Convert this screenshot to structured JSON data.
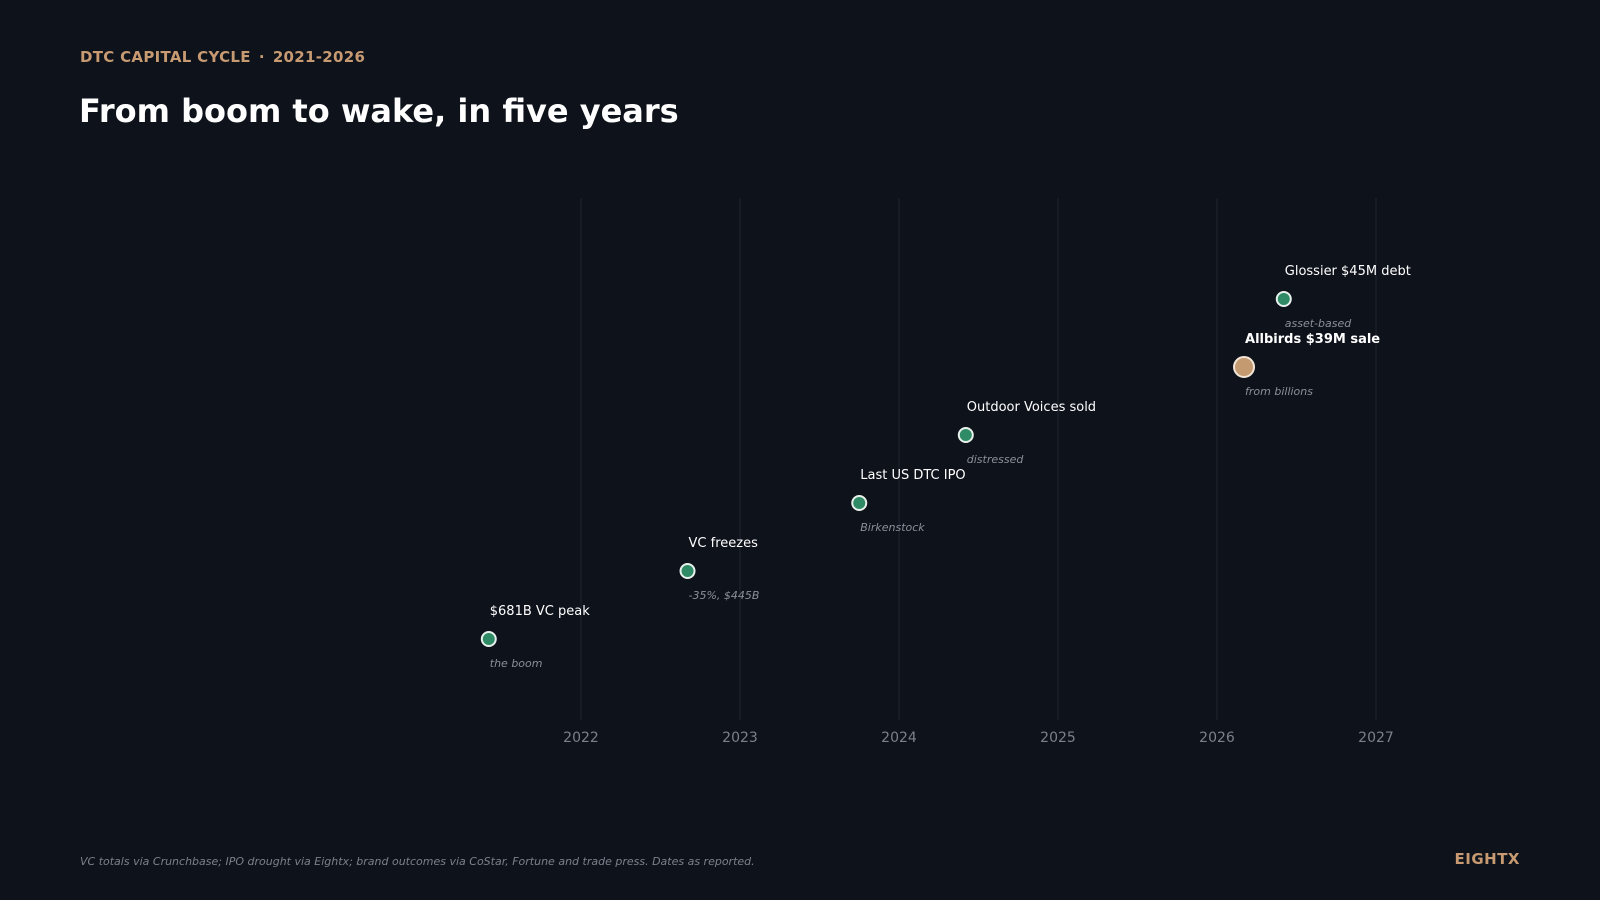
{
  "header": {
    "eyebrow_left": "DTC CAPITAL CYCLE",
    "eyebrow_sep": "·",
    "eyebrow_right": "2021-2026",
    "title": "From boom to wake, in five years"
  },
  "footer": {
    "source": "VC totals via Crunchbase; IPO drought via Eightx; brand outcomes via CoStar, Fortune and trade press. Dates as reported.",
    "brand": "EIGHTX"
  },
  "colors": {
    "background": "#0e121b",
    "accent": "#c79a72",
    "point": "#2f8a66",
    "highlight": "#c49a70",
    "text": "#ffffff",
    "muted": "#8a8f98",
    "grid": "#1e2430"
  },
  "chart_data": {
    "type": "scatter",
    "x_ticks": [
      2022,
      2023,
      2024,
      2025,
      2026,
      2027
    ],
    "xlim": [
      2021.4,
      2027.0
    ],
    "grid": true,
    "points": [
      {
        "x": 2021.42,
        "level": 1,
        "label": "$681B VC peak",
        "sublabel": "the boom",
        "highlight": false
      },
      {
        "x": 2022.67,
        "level": 2,
        "label": "VC freezes",
        "sublabel": "-35%, $445B",
        "highlight": false
      },
      {
        "x": 2023.75,
        "level": 3,
        "label": "Last US DTC IPO",
        "sublabel": "Birkenstock",
        "highlight": false
      },
      {
        "x": 2024.42,
        "level": 4,
        "label": "Outdoor Voices sold",
        "sublabel": "distressed",
        "highlight": false
      },
      {
        "x": 2026.17,
        "level": 5,
        "label": "Allbirds $39M sale",
        "sublabel": "from billions",
        "highlight": true
      },
      {
        "x": 2026.42,
        "level": 6,
        "label": "Glossier $45M debt",
        "sublabel": "asset-based",
        "highlight": false
      }
    ]
  }
}
